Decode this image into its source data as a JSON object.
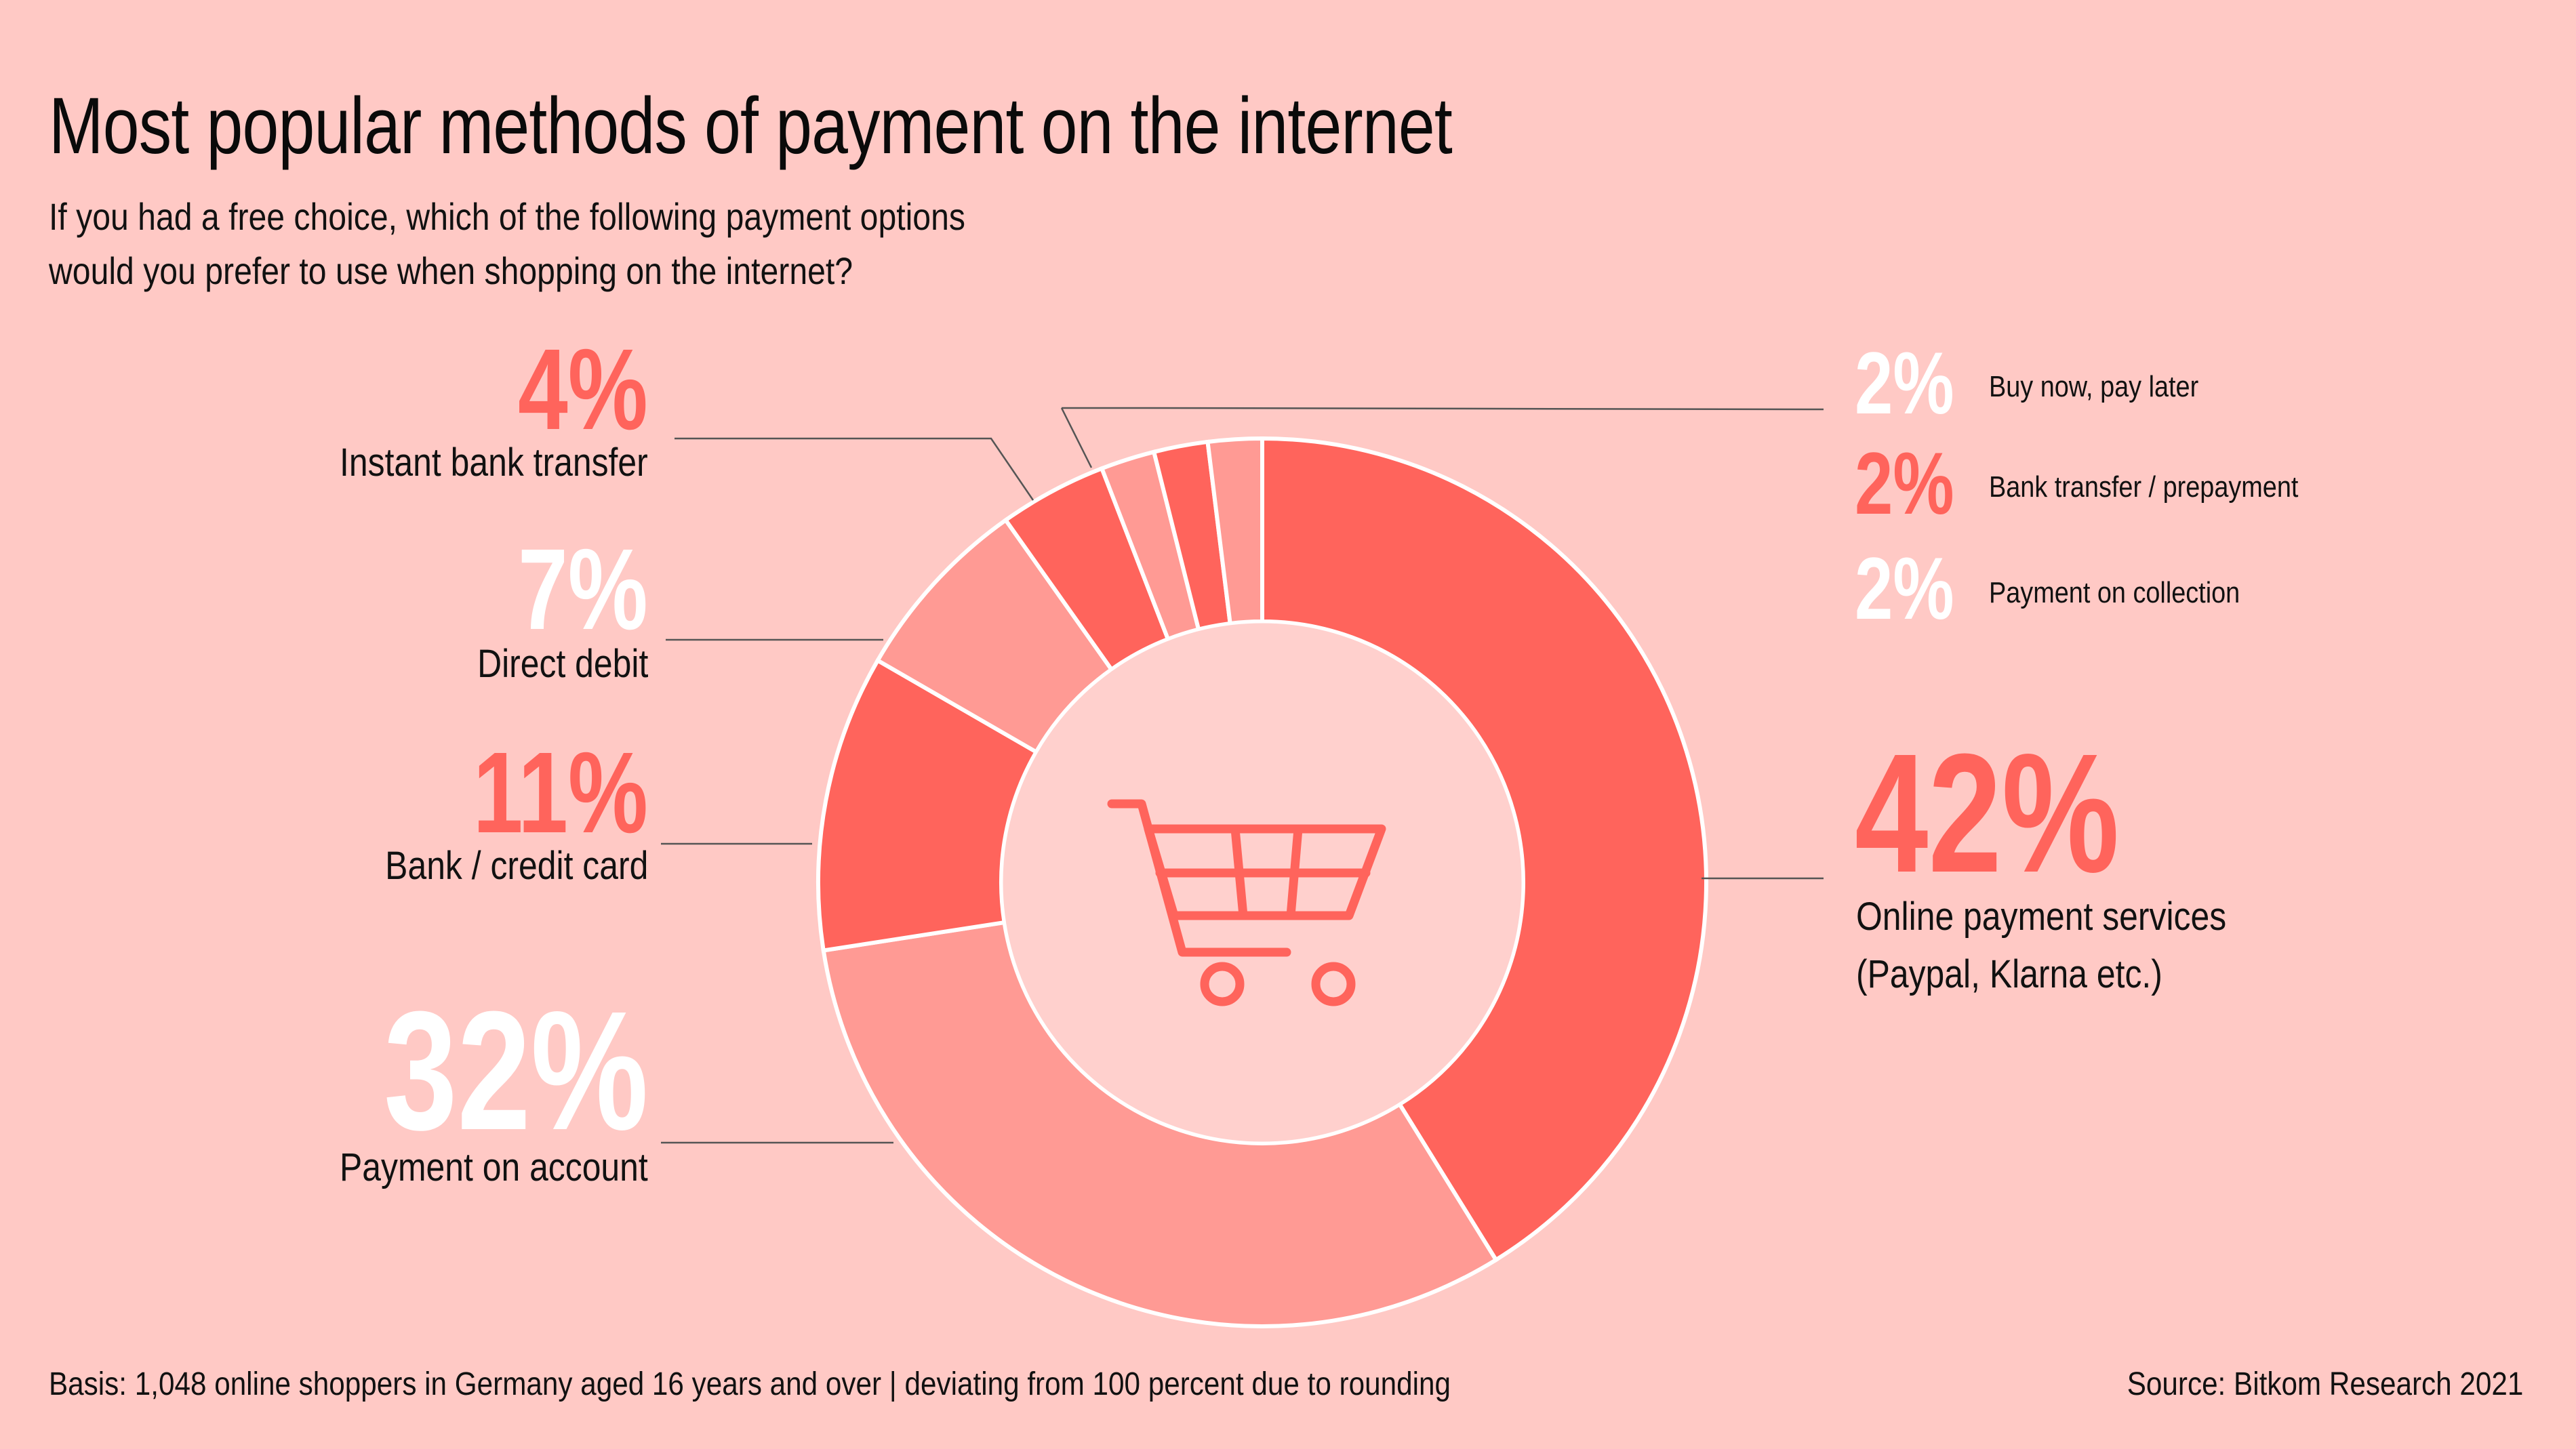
{
  "header": {
    "title": "Most popular methods of payment on the internet",
    "subtitle_line1": "If you had a free choice, which of the following payment options",
    "subtitle_line2": "would you prefer to use when shopping on the internet?"
  },
  "colors": {
    "background": "#FFC9C5",
    "dark_segment": "#FF645C",
    "light_segment": "#FF9A94",
    "inner_circle": "#FFD0CD",
    "white_label": "#FFFFFF"
  },
  "labels": {
    "instant_bank_transfer": {
      "pct": "4%",
      "text": "Instant bank transfer"
    },
    "direct_debit": {
      "pct": "7%",
      "text": "Direct debit"
    },
    "bank_credit_card": {
      "pct": "11%",
      "text": "Bank / credit card"
    },
    "payment_on_account": {
      "pct": "32%",
      "text": "Payment on account"
    },
    "buy_now_pay_later": {
      "pct": "2%",
      "text": "Buy now, pay later"
    },
    "bank_transfer_prepayment": {
      "pct": "2%",
      "text": "Bank transfer / prepayment"
    },
    "payment_on_collection": {
      "pct": "2%",
      "text": "Payment on collection"
    },
    "online_payment_services": {
      "pct": "42%",
      "text_line1": "Online payment services",
      "text_line2": "(Paypal, Klarna etc.)"
    }
  },
  "center_icon": "shopping-cart-icon",
  "footer": {
    "basis": "Basis: 1,048 online shoppers in Germany aged 16 years and over | deviating from 100 percent due to rounding",
    "source": "Source: Bitkom Research 2021"
  },
  "chart_data": {
    "type": "pie",
    "subtype": "donut",
    "title": "Most popular methods of payment on the internet",
    "subtitle": "If you had a free choice, which of the following payment options would you prefer to use when shopping on the internet?",
    "categories": [
      "Online payment services (Paypal, Klarna etc.)",
      "Payment on account",
      "Bank / credit card",
      "Direct debit",
      "Instant bank transfer",
      "Payment on collection",
      "Bank transfer / prepayment",
      "Buy now, pay later"
    ],
    "values": [
      42,
      32,
      11,
      7,
      4,
      2,
      2,
      2
    ],
    "unit": "%",
    "segment_colors": [
      "#FF645C",
      "#FF9A94",
      "#FF645C",
      "#FF9A94",
      "#FF645C",
      "#FF9A94",
      "#FF645C",
      "#FF9A94"
    ],
    "start_angle": "12 o'clock, clockwise",
    "note": "deviating from 100 percent due to rounding",
    "source": "Bitkom Research 2021",
    "basis": "1,048 online shoppers in Germany aged 16 years and over"
  }
}
